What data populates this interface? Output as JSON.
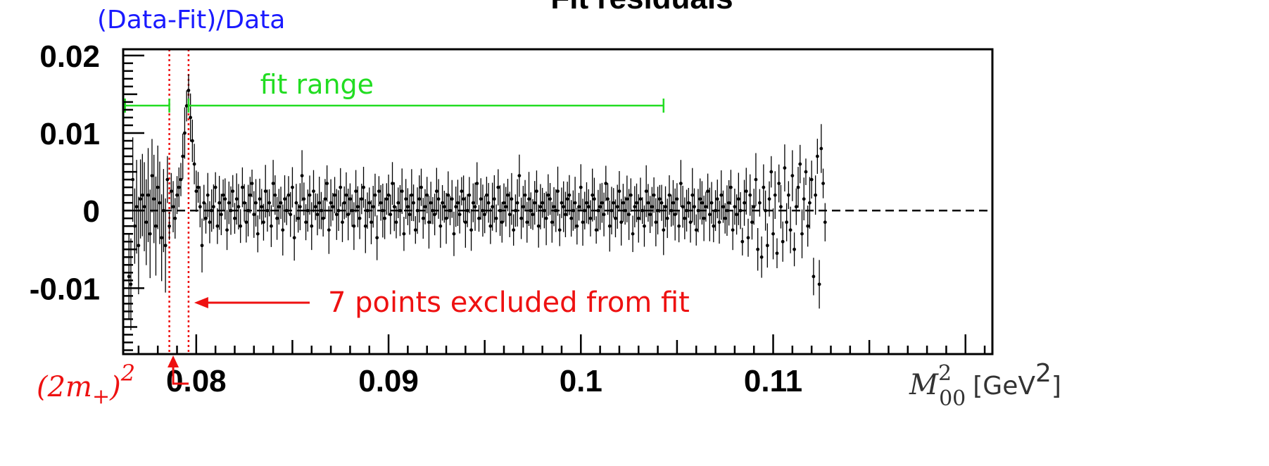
{
  "chart_data": {
    "type": "scatter",
    "title": "Fit residuals",
    "ylabel": "(Data-Fit)/Data",
    "xlabel": {
      "var": "M",
      "sup": "2",
      "sub": "00",
      "unit": "[GeV",
      "unit_sup": "2",
      "unit_close": "]"
    },
    "xlim": [
      0.0762,
      0.1214
    ],
    "ylim": [
      -0.0185,
      0.0208
    ],
    "xticks": [
      {
        "value": 0.08,
        "label": "0.08"
      },
      {
        "value": 0.09,
        "label": "0.09"
      },
      {
        "value": 0.1,
        "label": "0.1"
      },
      {
        "value": 0.11,
        "label": "0.11"
      }
    ],
    "yticks": [
      {
        "value": 0.02,
        "label": "0.02"
      },
      {
        "value": 0.01,
        "label": "0.01"
      },
      {
        "value": 0,
        "label": "0"
      },
      {
        "value": -0.01,
        "label": "-0.01"
      }
    ],
    "zero_line": true,
    "fit_range": {
      "label": "fit range",
      "from": 0.0763,
      "to": 0.1043,
      "excluded_from": 0.0786,
      "excluded_to": 0.0796
    },
    "excluded_region": {
      "from": 0.0786,
      "to": 0.0796,
      "label": "7 points excluded from fit"
    },
    "threshold": {
      "x": 0.0788,
      "label_base": "(2m",
      "label_sub": "+",
      "label_close": ")",
      "label_sup": "2"
    },
    "series": [
      {
        "x_start": 0.0765,
        "x_step": 0.0001,
        "y": [
          -0.0085,
          -0.0095,
          0.004,
          -0.002,
          0.0005,
          -0.0045,
          0.0015,
          0.002,
          0.0005,
          -0.0015,
          0.002,
          -0.003,
          0.0045,
          0.0015,
          -0.002,
          0.003,
          0.001,
          -0.0035,
          0.0,
          -0.0045,
          0.004,
          -0.002,
          0.0025,
          0.0005,
          -0.001,
          0.002,
          0.003,
          0.004,
          0.007,
          0.01,
          0.0135,
          0.0155,
          0.012,
          0.009,
          0.006,
          0.0025,
          0.003,
          0.0005,
          -0.0045,
          0.001,
          -0.001,
          0.002,
          -0.0015,
          0.0,
          0.0005,
          0.003,
          -0.002,
          0.001,
          -0.0005,
          0.002,
          0.0015,
          -0.0025,
          0.001,
          0.0,
          0.0025,
          -0.001,
          0.0015,
          0.0005,
          -0.002,
          0.003,
          0.001,
          -0.0015,
          0.0,
          0.002,
          0.0035,
          -0.0005,
          0.001,
          -0.003,
          0.0015,
          0.0005,
          -0.0015,
          0.0025,
          0.0,
          0.001,
          -0.002,
          0.0035,
          0.002,
          -0.001,
          0.0005,
          0.001,
          -0.0025,
          0.0015,
          0.0,
          0.002,
          -0.0005,
          0.003,
          -0.0035,
          0.001,
          -0.001,
          0.0005,
          0.0045,
          0.0015,
          -0.0015,
          0.0,
          0.002,
          -0.002,
          0.0025,
          0.0005,
          -0.0005,
          0.001,
          0.0,
          -0.001,
          0.0015,
          0.0035,
          -0.0025,
          0.001,
          0.0005,
          0.002,
          -0.0005,
          0.0,
          0.003,
          -0.0015,
          0.001,
          0.002,
          -0.0005,
          0.0015,
          0.0,
          -0.002,
          0.0025,
          0.0005,
          -0.001,
          0.0015,
          0.003,
          -0.002,
          0.0,
          0.001,
          -0.0015,
          0.0005,
          0.002,
          -0.0035,
          0.0025,
          0.001,
          0.0,
          -0.001,
          0.0015,
          0.002,
          -0.0005,
          0.0035,
          0.0005,
          -0.0015,
          0.001,
          0.0,
          0.0025,
          -0.003,
          0.0015,
          0.0005,
          -0.0005,
          0.002,
          0.001,
          -0.0025,
          0.0,
          0.0015,
          0.003,
          -0.001,
          0.0005,
          0.002,
          -0.0015,
          0.001,
          0.0,
          -0.0005,
          0.0025,
          0.0015,
          -0.002,
          0.001,
          0.0005,
          -0.001,
          0.002,
          0.0,
          0.0015,
          -0.003,
          0.0005,
          0.001,
          -0.0005,
          0.0025,
          0.0015,
          -0.0015,
          0.0,
          0.002,
          -0.0025,
          0.001,
          0.0005,
          0.0035,
          -0.001,
          0.0015,
          0.0,
          -0.0005,
          0.002,
          0.001,
          -0.002,
          0.0005,
          0.0015,
          -0.001,
          0.003,
          0.0,
          -0.0015,
          0.001,
          0.0005,
          0.002,
          -0.0005,
          0.0015,
          -0.0025,
          0.0,
          0.001,
          0.0045,
          -0.001,
          0.0005,
          0.002,
          -0.0015,
          0.0015,
          0.0,
          -0.0005,
          0.001,
          0.0025,
          -0.002,
          0.0005,
          0.001,
          0.0,
          -0.001,
          0.002,
          0.0015,
          -0.0015,
          0.0005,
          0.0,
          0.0025,
          -0.0025,
          0.001,
          0.0005,
          -0.0005,
          0.0015,
          0.002,
          -0.001,
          0.0,
          0.001,
          -0.002,
          0.0005,
          0.003,
          -0.0015,
          0.0,
          0.001,
          0.0005,
          -0.001,
          0.002,
          0.0015,
          -0.0025,
          0.0,
          0.0005,
          0.001,
          -0.0005,
          0.0035,
          0.0015,
          -0.002,
          0.0,
          0.001,
          -0.001,
          0.0005,
          0.0025,
          -0.0015,
          0.001,
          0.0,
          0.0015,
          -0.0005,
          0.002,
          -0.003,
          0.0005,
          0.001,
          -0.001,
          0.0015,
          0.0,
          -0.002,
          0.0025,
          0.001,
          -0.0005,
          0.0005,
          0.002,
          -0.0015,
          0.0,
          0.0015,
          0.001,
          -0.0025,
          0.0005,
          -0.001,
          0.002,
          0.0,
          0.001,
          -0.0005,
          0.0015,
          -0.002,
          0.0035,
          0.0005,
          -0.001,
          0.0,
          0.001,
          -0.0015,
          0.002,
          0.0005,
          -0.0025,
          0.0,
          0.0015,
          0.001,
          -0.001,
          0.0005,
          0.0025,
          -0.0005,
          0.001,
          -0.002,
          0.0,
          0.0015,
          -0.0015,
          0.002,
          0.0005,
          -0.001,
          0.0,
          0.001,
          0.003,
          -0.0025,
          0.0005,
          -0.0005,
          0.0015,
          0.0,
          -0.004,
          0.001,
          0.0025,
          -0.0035,
          0.002,
          -0.0015,
          0.0005,
          0.004,
          -0.005,
          0.001,
          -0.006,
          0.003,
          0.0,
          -0.0045,
          0.0015,
          0.005,
          -0.003,
          0.002,
          -0.0055,
          0.0035,
          0.0005,
          -0.004,
          0.0055,
          -0.0015,
          0.002,
          -0.0025,
          0.0045,
          -0.005,
          0.0005,
          0.003,
          0.006,
          -0.003,
          0.0015,
          0.005,
          -0.002,
          0.001,
          0.004,
          -0.0085,
          0.002,
          0.007,
          -0.0095,
          0.008,
          0.0035,
          -0.0015
        ]
      }
    ]
  }
}
